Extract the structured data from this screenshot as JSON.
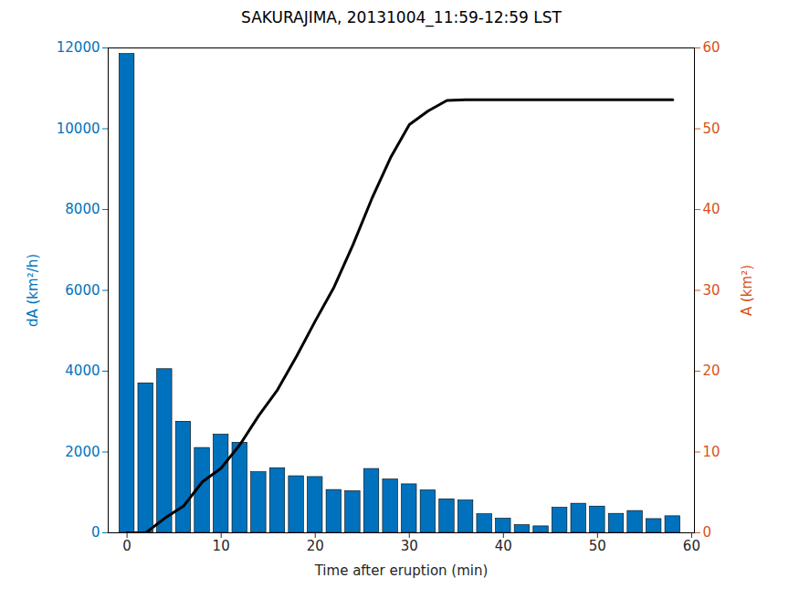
{
  "chart_data": {
    "type": "bar",
    "title": "SAKURAJIMA, 20131004_11:59-12:59 LST",
    "x_label": "Time after eruption (min)",
    "y_label": "dA (km²/h)",
    "y2_label": "A (km²)",
    "x": [
      0,
      2,
      4,
      6,
      8,
      10,
      12,
      14,
      16,
      18,
      20,
      22,
      24,
      26,
      28,
      30,
      32,
      34,
      36,
      38,
      40,
      42,
      44,
      46,
      48,
      50,
      52,
      54,
      56,
      58
    ],
    "series": [
      {
        "type": "bar",
        "color": "#0072BD",
        "values": [
          11850,
          3700,
          4050,
          2750,
          2100,
          2430,
          2230,
          1500,
          1600,
          1400,
          1380,
          1060,
          1030,
          1580,
          1320,
          1200,
          1050,
          830,
          800,
          460,
          350,
          190,
          160,
          620,
          720,
          650,
          470,
          540,
          340,
          410
        ]
      },
      {
        "type": "line",
        "color": "#000000",
        "axis": "y2",
        "values": [
          0,
          0,
          1.8,
          3.3,
          6.3,
          8.0,
          10.9,
          14.5,
          17.7,
          21.8,
          26.2,
          30.4,
          35.6,
          41.3,
          46.4,
          50.5,
          52.2,
          53.5,
          53.6,
          53.6,
          53.6,
          53.6,
          53.6,
          53.6,
          53.6,
          53.6,
          53.6,
          53.6,
          53.6,
          53.6
        ]
      }
    ],
    "xlim": [
      -2,
      60.3
    ],
    "xticks": [
      0,
      10,
      20,
      30,
      40,
      50,
      60
    ],
    "ylim": [
      0,
      12000
    ],
    "yticks": [
      0,
      2000,
      4000,
      6000,
      8000,
      10000,
      12000
    ],
    "y2lim": [
      0,
      60
    ],
    "y2ticks": [
      0,
      10,
      20,
      30,
      40,
      50,
      60
    ]
  }
}
